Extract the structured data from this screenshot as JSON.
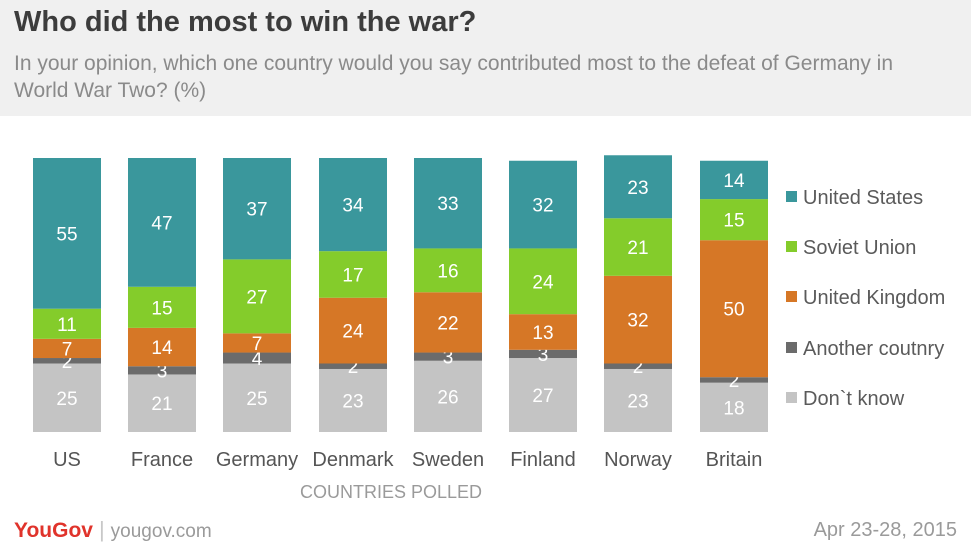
{
  "header": {
    "title": "Who did the most to win the war?",
    "subtitle": "In your opinion, which one country would you say contributed most to the defeat of Germany in World War Two? (%)"
  },
  "footer": {
    "logo_you": "YouGov",
    "logo_gov": "",
    "separator": "|",
    "site": "yougov.com",
    "date": "Apr 23-28, 2015"
  },
  "colors": {
    "United States": "#3a979c",
    "Soviet Union": "#84cc2b",
    "United Kingdom": "#d67726",
    "Another coutnry": "#6b6b6b",
    "Don`t know": "#c4c4c4"
  },
  "chart_data": {
    "type": "bar",
    "stacked": true,
    "xlabel": "COUNTRIES POLLED",
    "categories": [
      "US",
      "France",
      "Germany",
      "Denmark",
      "Sweden",
      "Finland",
      "Norway",
      "Britain"
    ],
    "series": [
      {
        "name": "United States",
        "values": [
          55,
          47,
          37,
          34,
          33,
          32,
          23,
          14
        ]
      },
      {
        "name": "Soviet Union",
        "values": [
          11,
          15,
          27,
          17,
          16,
          24,
          21,
          15
        ]
      },
      {
        "name": "United Kingdom",
        "values": [
          7,
          14,
          7,
          24,
          22,
          13,
          32,
          50
        ]
      },
      {
        "name": "Another coutnry",
        "values": [
          2,
          3,
          4,
          2,
          3,
          3,
          2,
          2
        ]
      },
      {
        "name": "Don`t know",
        "values": [
          25,
          21,
          25,
          23,
          26,
          27,
          23,
          18
        ]
      }
    ],
    "legend_position": "right",
    "grid": false
  }
}
